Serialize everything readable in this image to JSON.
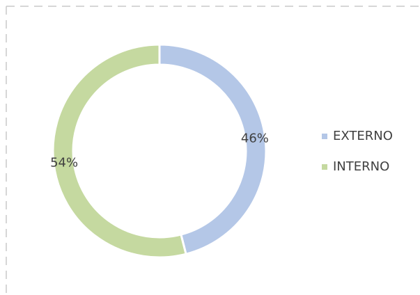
{
  "chart_data": {
    "type": "donut",
    "categories": [
      "EXTERNO",
      "INTERNO"
    ],
    "values": [
      46,
      54
    ],
    "value_labels": [
      "46%",
      "54%"
    ],
    "colors": [
      "#b4c7e7",
      "#c5d9a0"
    ],
    "legend": "right"
  }
}
